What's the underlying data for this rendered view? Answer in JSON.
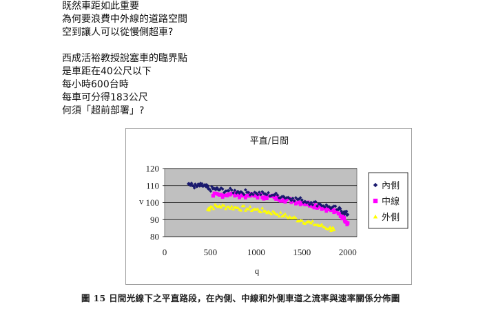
{
  "post": {
    "lines": [
      "既然車距如此重要",
      "為何要浪費中外線的道路空間",
      "空到讓人可以從慢側超車?",
      "",
      "西成活裕教授說塞車的臨界點",
      "是車距在40公尺以下",
      "每小時600台時",
      "每車可分得183公尺",
      "何須「超前部署」?"
    ]
  },
  "figure": {
    "caption": "圖 15  日間光線下之平直路段，在內側、中線和外側車道之流率與速率關係分佈圖"
  },
  "chart_data": {
    "type": "scatter",
    "title": "平直/日間",
    "xlabel": "q",
    "ylabel": "v",
    "xlim": [
      0,
      2100
    ],
    "ylim": [
      80,
      120
    ],
    "xticks": [
      0,
      500,
      1000,
      1500,
      2000
    ],
    "yticks": [
      80,
      90,
      100,
      110,
      120
    ],
    "grid": true,
    "plot_background": "#c0c0c0",
    "legend_position": "right",
    "series": [
      {
        "name": "內側",
        "color": "#1a1a6e",
        "marker": "diamond",
        "points": [
          [
            260,
            111
          ],
          [
            300,
            110
          ],
          [
            350,
            109.5
          ],
          [
            400,
            110
          ],
          [
            450,
            109.5
          ],
          [
            480,
            108
          ],
          [
            550,
            108
          ],
          [
            600,
            107.5
          ],
          [
            700,
            107
          ],
          [
            800,
            106.5
          ],
          [
            900,
            106
          ],
          [
            1000,
            105.5
          ],
          [
            1100,
            105
          ],
          [
            1200,
            104.5
          ],
          [
            1300,
            103.5
          ],
          [
            1400,
            102.5
          ],
          [
            1500,
            101.5
          ],
          [
            1600,
            100
          ],
          [
            1700,
            99
          ],
          [
            1800,
            97.5
          ],
          [
            1900,
            96
          ],
          [
            1960,
            94.5
          ],
          [
            2000,
            93
          ]
        ]
      },
      {
        "name": "中線",
        "color": "#ff00ff",
        "marker": "square",
        "points": [
          [
            530,
            104
          ],
          [
            600,
            104.5
          ],
          [
            700,
            105
          ],
          [
            800,
            104.5
          ],
          [
            900,
            104
          ],
          [
            1000,
            104
          ],
          [
            1100,
            103.5
          ],
          [
            1200,
            103
          ],
          [
            1300,
            102
          ],
          [
            1400,
            101
          ],
          [
            1500,
            100
          ],
          [
            1600,
            99
          ],
          [
            1700,
            97.5
          ],
          [
            1800,
            96
          ],
          [
            1900,
            93.5
          ],
          [
            1960,
            91
          ],
          [
            2000,
            88
          ]
        ]
      },
      {
        "name": "外側",
        "color": "#ffff00",
        "marker": "triangle",
        "points": [
          [
            470,
            96
          ],
          [
            500,
            97.5
          ],
          [
            600,
            98
          ],
          [
            700,
            97.5
          ],
          [
            800,
            97
          ],
          [
            900,
            96.5
          ],
          [
            1000,
            96
          ],
          [
            1100,
            95
          ],
          [
            1200,
            94
          ],
          [
            1300,
            92.5
          ],
          [
            1400,
            91
          ],
          [
            1500,
            89.5
          ],
          [
            1600,
            88
          ],
          [
            1700,
            86.5
          ],
          [
            1800,
            85
          ],
          [
            1850,
            84
          ]
        ]
      }
    ]
  }
}
